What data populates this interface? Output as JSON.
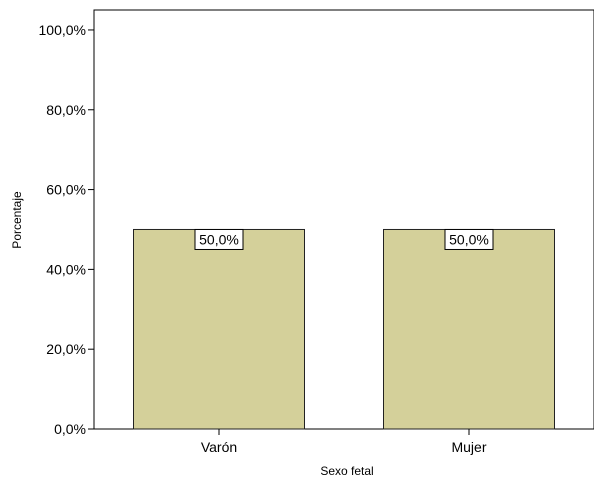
{
  "chart_data": {
    "type": "bar",
    "categories": [
      "Varón",
      "Mujer"
    ],
    "values": [
      50.0,
      50.0
    ],
    "data_labels": [
      "50,0%",
      "50,0%"
    ],
    "xlabel": "Sexo fetal",
    "ylabel": "Porcentaje",
    "ylim": [
      0,
      105
    ],
    "yticks": [
      0,
      20,
      40,
      60,
      80,
      100
    ],
    "ytick_labels": [
      "0,0%",
      "20,0%",
      "40,0%",
      "60,0%",
      "80,0%",
      "100,0%"
    ],
    "grid": false,
    "legend": "none",
    "bar_color": "#d4d09a",
    "bar_edge_color": "#222222"
  }
}
